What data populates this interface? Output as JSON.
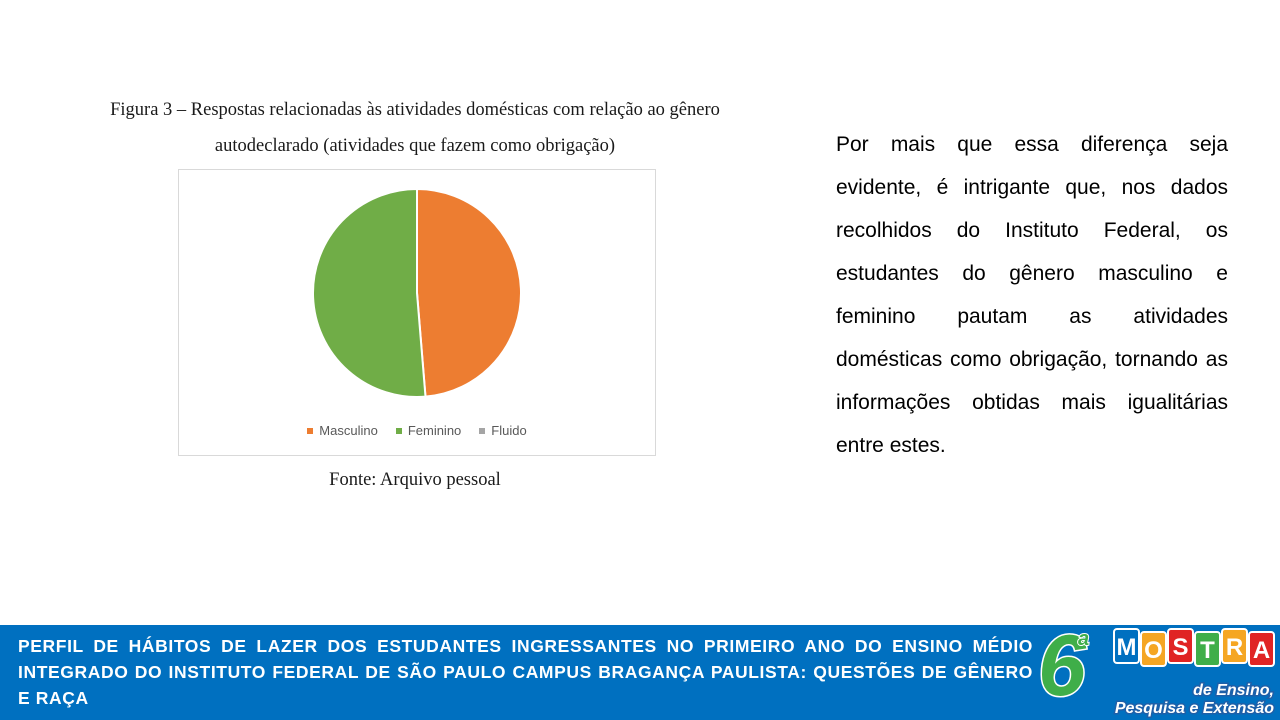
{
  "figure": {
    "caption_line1": "Figura 3 – Respostas relacionadas às atividades domésticas com relação ao gênero",
    "caption_line2": "autodeclarado (atividades que fazem como obrigação)",
    "source": "Fonte: Arquivo pessoal"
  },
  "chart_data": {
    "type": "pie",
    "categories": [
      "Masculino",
      "Feminino",
      "Fluido"
    ],
    "values": [
      48.7,
      51.3,
      0
    ],
    "colors": [
      "#ed7d31",
      "#70ad47",
      "#a5a5a5"
    ],
    "legend_position": "bottom"
  },
  "body_text": "Por mais que essa diferença seja evidente, é intrigante que, nos dados recolhidos do Instituto Federal, os estudantes do gênero masculino e feminino pautam as atividades domésticas como obrigação, tornando as informações obtidas mais igualitárias entre estes.",
  "footer": {
    "title": "PERFIL DE HÁBITOS DE LAZER DOS ESTUDANTES INGRESSANTES NO PRIMEIRO ANO DO ENSINO MÉDIO INTEGRADO DO INSTITUTO FEDERAL DE SÃO PAULO CAMPUS BRAGANÇA PAULISTA: QUESTÕES DE GÊNERO E RAÇA",
    "logo": {
      "number": "6",
      "ordinal": "a",
      "letters": [
        "M",
        "O",
        "S",
        "T",
        "R",
        "A"
      ],
      "letter_colors": [
        "#0070c0",
        "#f5a623",
        "#e02424",
        "#3fae49",
        "#f5a623",
        "#e02424"
      ],
      "line1": "de Ensino,",
      "line2": "Pesquisa e Extensão"
    }
  }
}
